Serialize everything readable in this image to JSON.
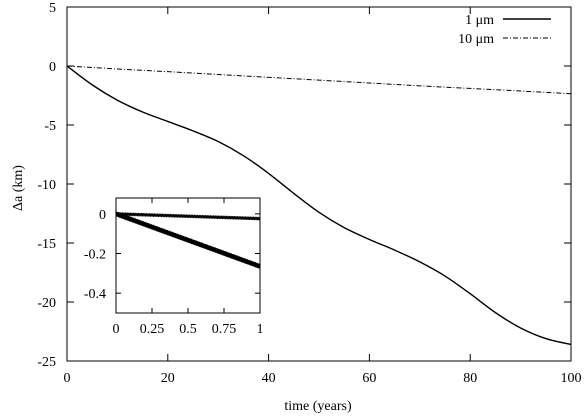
{
  "chart_data": [
    {
      "type": "line",
      "title": "",
      "xlabel": "time (years)",
      "ylabel": "Δa (km)",
      "xlim": [
        0,
        100
      ],
      "ylim": [
        -25,
        5
      ],
      "xticks": [
        0,
        20,
        40,
        60,
        80,
        100
      ],
      "yticks": [
        5,
        0,
        -5,
        -10,
        -15,
        -20,
        -25
      ],
      "xtick_labels": [
        "0",
        "20",
        "40",
        "60",
        "80",
        "100"
      ],
      "ytick_labels": [
        "5",
        "0",
        "-5",
        "-10",
        "-15",
        "-20",
        "-25"
      ],
      "grid": false,
      "legend_position": "top-right",
      "series": [
        {
          "name": "1 μm",
          "style": "solid",
          "color": "#000000",
          "x": [
            0,
            5,
            10,
            15,
            20,
            25,
            30,
            35,
            40,
            45,
            50,
            55,
            60,
            65,
            70,
            75,
            80,
            85,
            90,
            95,
            100
          ],
          "y": [
            0,
            -1.6,
            -2.9,
            -3.9,
            -4.7,
            -5.5,
            -6.4,
            -7.6,
            -9.1,
            -10.8,
            -12.4,
            -13.7,
            -14.7,
            -15.6,
            -16.6,
            -17.8,
            -19.3,
            -20.9,
            -22.2,
            -23.1,
            -23.6
          ]
        },
        {
          "name": "10 μm",
          "style": "dash-dot",
          "color": "#000000",
          "x": [
            0,
            10,
            20,
            30,
            40,
            50,
            60,
            70,
            80,
            90,
            100
          ],
          "y": [
            0,
            -0.25,
            -0.48,
            -0.72,
            -0.96,
            -1.2,
            -1.44,
            -1.68,
            -1.9,
            -2.12,
            -2.35
          ]
        }
      ]
    },
    {
      "type": "line",
      "title": "",
      "xlabel": "",
      "ylabel": "",
      "xlim": [
        0,
        1
      ],
      "ylim": [
        -0.5,
        0.08
      ],
      "xticks": [
        0,
        0.25,
        0.5,
        0.75,
        1
      ],
      "yticks": [
        0,
        -0.2,
        -0.4
      ],
      "xtick_labels": [
        "0",
        "0.25",
        "0.5",
        "0.75",
        "1"
      ],
      "ytick_labels": [
        "0",
        "-0.2",
        "-0.4"
      ],
      "grid": false,
      "series": [
        {
          "style": "oscillating-band",
          "color": "#000000",
          "x": [
            0,
            1
          ],
          "y": [
            0.0,
            -0.265
          ],
          "band_halfwidth": 0.012
        },
        {
          "style": "oscillating-band",
          "color": "#000000",
          "x": [
            0,
            1
          ],
          "y": [
            0.0,
            -0.024
          ],
          "band_halfwidth": 0.008
        }
      ]
    }
  ]
}
